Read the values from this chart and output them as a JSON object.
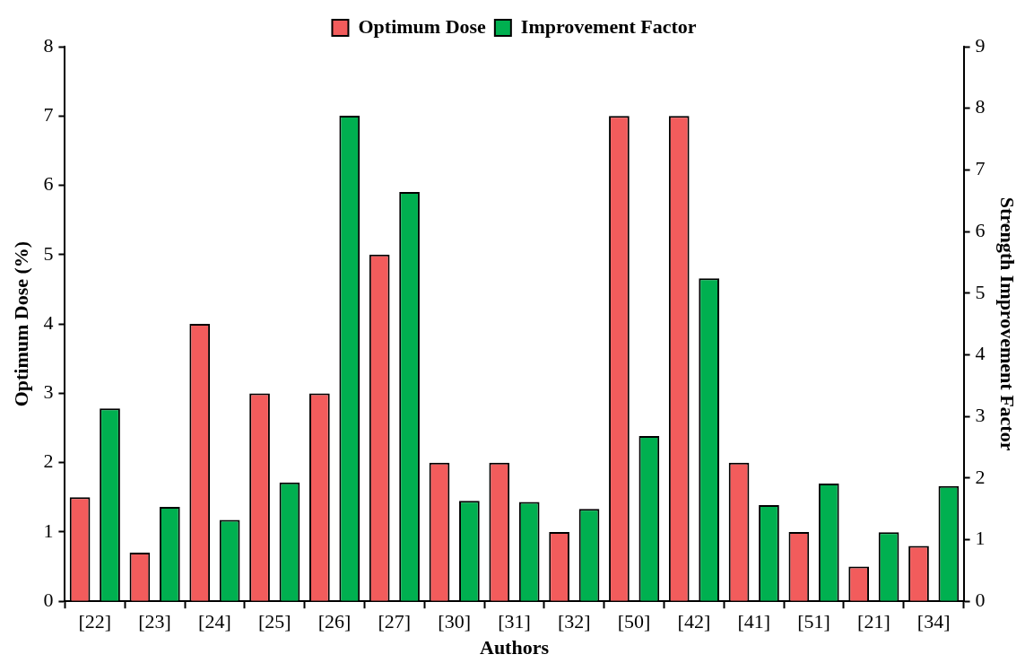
{
  "chart_data": {
    "type": "bar",
    "xlabel": "Authors",
    "ylabel": "Optimum Dose (%)",
    "y2label": "Strength Improvement Factor",
    "categories": [
      "[22]",
      "[23]",
      "[24]",
      "[25]",
      "[26]",
      "[27]",
      "[30]",
      "[31]",
      "[32]",
      "[50]",
      "[42]",
      "[41]",
      "[51]",
      "[21]",
      "[34]"
    ],
    "series": [
      {
        "name": "Optimum Dose",
        "color": "#f25c5c",
        "values": [
          1.5,
          0.7,
          4,
          3,
          3,
          5,
          2,
          2,
          1,
          7,
          7,
          2,
          1,
          0.5,
          0.8
        ]
      },
      {
        "name": "Improvement Factor",
        "color": "#00b050",
        "axis": "y2",
        "values": [
          3.13,
          1.53,
          1.32,
          1.93,
          7.88,
          6.64,
          1.63,
          1.61,
          1.5,
          2.68,
          5.24,
          1.56,
          1.91,
          1.12,
          1.87
        ]
      }
    ],
    "ylim": [
      0,
      8
    ],
    "yticks": [
      0,
      1,
      2,
      3,
      4,
      5,
      6,
      7,
      8
    ],
    "y2lim": [
      0,
      9
    ],
    "y2ticks": [
      0,
      1,
      2,
      3,
      4,
      5,
      6,
      7,
      8,
      9
    ],
    "grid": false,
    "legend": "top"
  }
}
